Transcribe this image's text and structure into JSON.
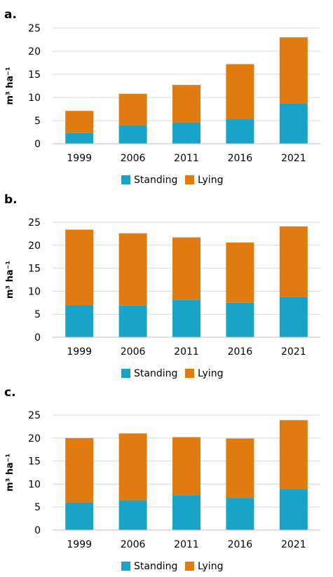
{
  "chart_data": [
    {
      "type": "bar",
      "stacked": true,
      "panel_label": "a.",
      "categories": [
        "1999",
        "2006",
        "2011",
        "2016",
        "2021"
      ],
      "series": [
        {
          "name": "Standing",
          "color": "#1aa3c9",
          "values": [
            2.3,
            4.0,
            4.6,
            5.3,
            8.7
          ]
        },
        {
          "name": "Lying",
          "color": "#e07b12",
          "values": [
            4.8,
            6.8,
            8.1,
            11.9,
            14.3
          ]
        }
      ],
      "ylabel": "m³ ha⁻¹",
      "ylim": [
        0,
        25
      ],
      "yticks": [
        "0",
        "5",
        "10",
        "15",
        "20",
        "25"
      ],
      "grid": true,
      "legend": "bottom"
    },
    {
      "type": "bar",
      "stacked": true,
      "panel_label": "b.",
      "categories": [
        "1999",
        "2006",
        "2011",
        "2016",
        "2021"
      ],
      "series": [
        {
          "name": "Standing",
          "color": "#1aa3c9",
          "values": [
            7.0,
            6.9,
            8.1,
            7.5,
            8.8
          ]
        },
        {
          "name": "Lying",
          "color": "#e07b12",
          "values": [
            16.4,
            15.7,
            13.6,
            13.1,
            15.3
          ]
        }
      ],
      "ylabel": "m³ ha⁻¹",
      "ylim": [
        0,
        25
      ],
      "yticks": [
        "0",
        "5",
        "10",
        "15",
        "20",
        "25"
      ],
      "grid": true,
      "legend": "bottom"
    },
    {
      "type": "bar",
      "stacked": true,
      "panel_label": "c.",
      "categories": [
        "1999",
        "2006",
        "2011",
        "2016",
        "2021"
      ],
      "series": [
        {
          "name": "Standing",
          "color": "#1aa3c9",
          "values": [
            6.0,
            6.5,
            7.6,
            7.0,
            8.9
          ]
        },
        {
          "name": "Lying",
          "color": "#e07b12",
          "values": [
            14.0,
            14.5,
            12.6,
            12.9,
            15.0
          ]
        }
      ],
      "ylabel": "m³ ha⁻¹",
      "ylim": [
        0,
        25
      ],
      "yticks": [
        "0",
        "5",
        "10",
        "15",
        "20",
        "25"
      ],
      "grid": true,
      "legend": "bottom"
    }
  ]
}
